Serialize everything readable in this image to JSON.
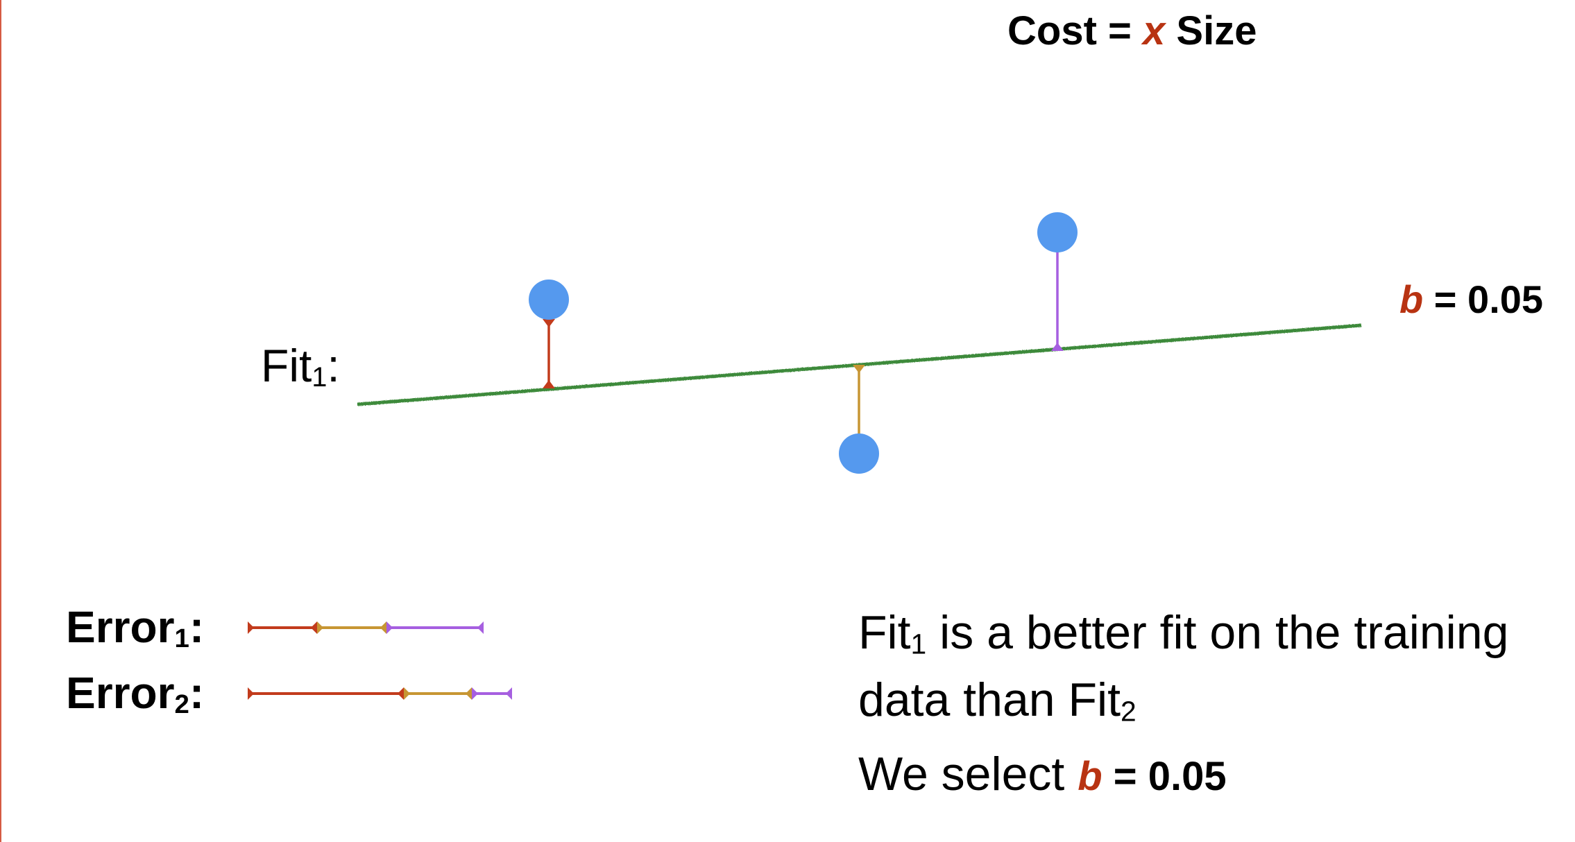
{
  "colors": {
    "accent_red": "#b83312",
    "fit_line_green": "#3e8a3a",
    "point_blue": "#5599ee",
    "error_red": "#c23b1c",
    "error_gold": "#c79633",
    "error_purple": "#a65fe0",
    "border_red": "#d55a43"
  },
  "title": {
    "prefix": "Cost =",
    "variable": "x",
    "suffix": "Size"
  },
  "fit_label": {
    "text": "Fit",
    "subscript": "1",
    "colon": ":"
  },
  "slope_label": {
    "variable": "b",
    "value": "= 0.05"
  },
  "errors": [
    {
      "label": "Error",
      "subscript": "1",
      "colon": ":",
      "segments": [
        {
          "color_key": "error_red",
          "length": 1.0
        },
        {
          "color_key": "error_gold",
          "length": 1.0
        },
        {
          "color_key": "error_purple",
          "length": 1.4
        }
      ]
    },
    {
      "label": "Error",
      "subscript": "2",
      "colon": ":",
      "segments": [
        {
          "color_key": "error_red",
          "length": 2.25
        },
        {
          "color_key": "error_gold",
          "length": 0.98
        },
        {
          "color_key": "error_purple",
          "length": 0.58
        }
      ]
    }
  ],
  "conclusion": {
    "line1_a": "Fit",
    "line1_sub": "1",
    "line1_b": " is a better fit on the training",
    "line2_a": "data than Fit",
    "line2_sub": "2",
    "line3_a": "We select ",
    "line3_var": "b",
    "line3_value": " = 0.05"
  }
}
